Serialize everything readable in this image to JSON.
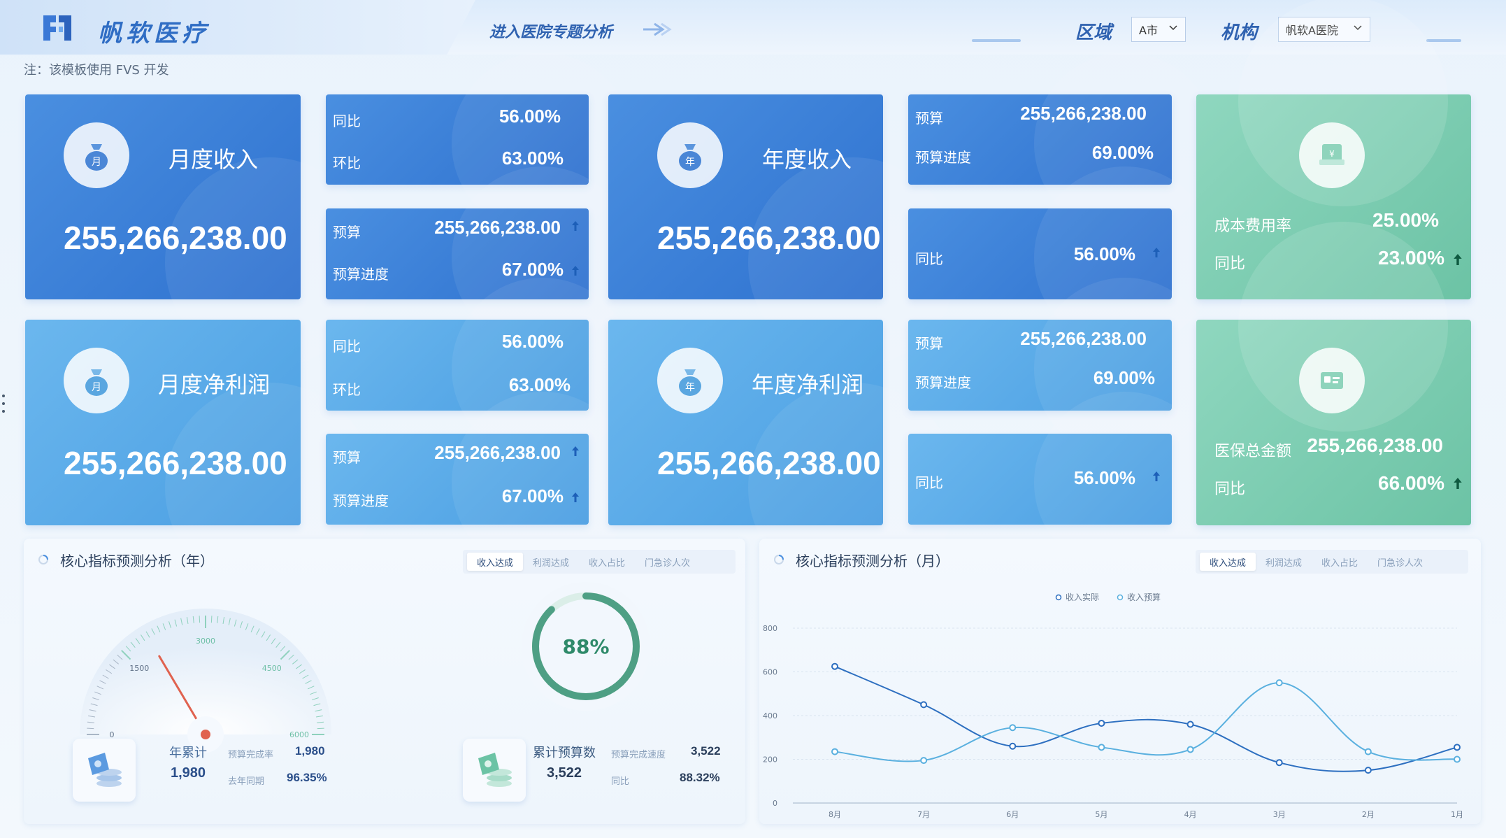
{
  "header": {
    "title": "帆软医疗",
    "enter_link": "进入医院专题分析",
    "region_label": "区域",
    "region_value": "A市",
    "org_label": "机构",
    "org_value": "帆软A医院",
    "note": "注：该模板使用 FVS 开发"
  },
  "colors": {
    "dark_blue": "#2e71cf",
    "light_blue": "#4a9ee2",
    "green": "#6cc3a5",
    "gauge_needle": "#e0624f"
  },
  "kpi": {
    "monthly_revenue": {
      "title": "月度收入",
      "icon_char": "月",
      "value": "255,266,238.00"
    },
    "monthly_revenue_yoy": {
      "label1": "同比",
      "value1": "56.00%",
      "label2": "环比",
      "value2": "63.00%"
    },
    "monthly_revenue_budget": {
      "label1": "预算",
      "value1": "255,266,238.00",
      "label2": "预算进度",
      "value2": "67.00%"
    },
    "annual_revenue": {
      "title": "年度收入",
      "icon_char": "年",
      "value": "255,266,238.00"
    },
    "annual_revenue_budget": {
      "label1": "预算",
      "value1": "255,266,238.00",
      "label2": "预算进度",
      "value2": "69.00%"
    },
    "annual_revenue_yoy": {
      "label1": "同比",
      "value1": "56.00%"
    },
    "cost_rate": {
      "label1": "成本费用率",
      "value1": "25.00%",
      "label2": "同比",
      "value2": "23.00%"
    },
    "monthly_profit": {
      "title": "月度净利润",
      "icon_char": "月",
      "value": "255,266,238.00"
    },
    "monthly_profit_yoy": {
      "label1": "同比",
      "value1": "56.00%",
      "label2": "环比",
      "value2": "63.00%"
    },
    "monthly_profit_budget": {
      "label1": "预算",
      "value1": "255,266,238.00",
      "label2": "预算进度",
      "value2": "67.00%"
    },
    "annual_profit": {
      "title": "年度净利润",
      "icon_char": "年",
      "value": "255,266,238.00"
    },
    "annual_profit_budget": {
      "label1": "预算",
      "value1": "255,266,238.00",
      "label2": "预算进度",
      "value2": "69.00%"
    },
    "annual_profit_yoy": {
      "label1": "同比",
      "value1": "56.00%"
    },
    "insurance": {
      "label1": "医保总金额",
      "value1": "255,266,238.00",
      "label2": "同比",
      "value2": "66.00%"
    }
  },
  "annual_panel": {
    "title": "核心指标预测分析（年）",
    "tabs": [
      "收入达成",
      "利润达成",
      "收入占比",
      "门急诊人次"
    ],
    "active_tab": 0,
    "gauge": {
      "ticks": [
        "0",
        "1500",
        "3000",
        "4500",
        "6000"
      ],
      "min": 0,
      "max": 6000,
      "value": 1980
    },
    "left_stats": {
      "label": "年累计",
      "value": "1,980",
      "rate_label": "预算完成率",
      "rate_value": "1,980",
      "last_label": "去年同期",
      "last_value": "96.35%"
    },
    "ring": {
      "percent": 88,
      "label": "88%"
    },
    "right_stats": {
      "label": "累计预算数",
      "value": "3,522",
      "speed_label": "预算完成速度",
      "speed_value": "3,522",
      "yoy_label": "同比",
      "yoy_value": "88.32%"
    }
  },
  "monthly_panel": {
    "title": "核心指标预测分析（月）",
    "tabs": [
      "收入达成",
      "利润达成",
      "收入占比",
      "门急诊人次"
    ],
    "active_tab": 0
  },
  "chart_data": {
    "type": "line",
    "title": "",
    "xlabel": "",
    "ylabel": "",
    "categories": [
      "8月",
      "7月",
      "6月",
      "5月",
      "4月",
      "3月",
      "2月",
      "1月"
    ],
    "ylim": [
      0,
      800
    ],
    "yticks": [
      0,
      200,
      400,
      600,
      800
    ],
    "legend_position": "top",
    "series": [
      {
        "name": "收入实际",
        "color": "#2d6fc0",
        "values": [
          625,
          450,
          260,
          365,
          360,
          185,
          150,
          255
        ]
      },
      {
        "name": "收入预算",
        "color": "#5ab0df",
        "values": [
          235,
          195,
          345,
          255,
          245,
          550,
          235,
          200
        ]
      }
    ]
  }
}
